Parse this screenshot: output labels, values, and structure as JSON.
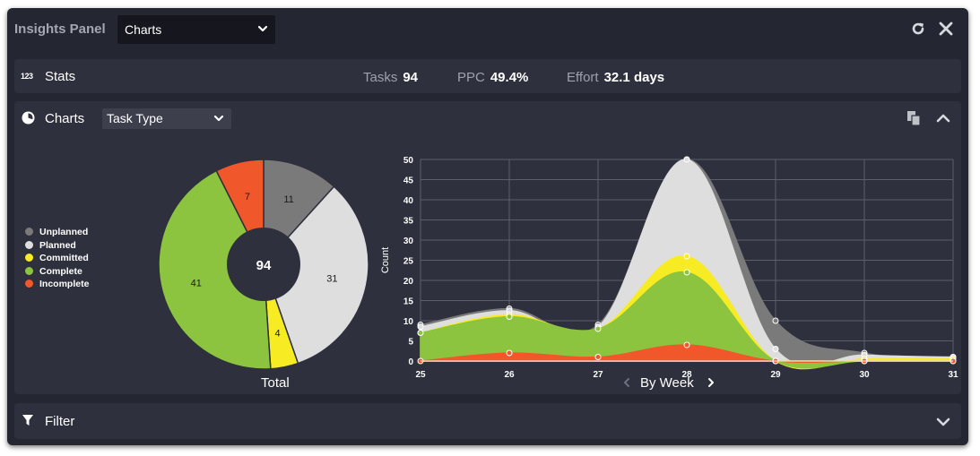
{
  "header": {
    "title": "Insights Panel",
    "view_select": "Charts"
  },
  "stats": {
    "label": "Stats",
    "icon_text": "123",
    "items": [
      {
        "name": "Tasks",
        "value": "94"
      },
      {
        "name": "PPC",
        "value": "49.4%"
      },
      {
        "name": "Effort",
        "value": "32.1 days"
      }
    ]
  },
  "charts_section": {
    "label": "Charts",
    "type_select": "Task Type"
  },
  "filter": {
    "label": "Filter"
  },
  "colors": {
    "unplanned": "#7a7a7a",
    "planned": "#dedede",
    "committed": "#f7ec23",
    "complete": "#8cc43f",
    "incomplete": "#f0572a"
  },
  "legend": [
    "Unplanned",
    "Planned",
    "Committed",
    "Complete",
    "Incomplete"
  ],
  "chart_data": [
    {
      "type": "pie",
      "title": "Total",
      "center_label": "94",
      "slices": [
        {
          "label": "Unplanned",
          "value": 11
        },
        {
          "label": "Planned",
          "value": 31
        },
        {
          "label": "Committed",
          "value": 4
        },
        {
          "label": "Complete",
          "value": 41
        },
        {
          "label": "Incomplete",
          "value": 7
        }
      ]
    },
    {
      "type": "area",
      "xlabel": "By Week",
      "ylabel": "Count",
      "x": [
        25,
        26,
        27,
        28,
        29,
        30,
        31
      ],
      "ylim": [
        0,
        50
      ],
      "yticks": [
        0,
        5,
        10,
        15,
        20,
        25,
        30,
        35,
        40,
        45,
        50
      ],
      "grid": true,
      "series": [
        {
          "name": "Unplanned",
          "values": [
            9,
            13,
            9,
            50,
            10,
            2,
            1
          ]
        },
        {
          "name": "Planned",
          "values": [
            8.5,
            12.5,
            8.5,
            50,
            3,
            1.5,
            1
          ]
        },
        {
          "name": "Committed",
          "values": [
            7,
            11.5,
            8,
            26,
            0,
            0.5,
            0.5
          ]
        },
        {
          "name": "Complete",
          "values": [
            7,
            11,
            8,
            22,
            0,
            0,
            0
          ]
        },
        {
          "name": "Incomplete",
          "values": [
            0,
            2,
            1,
            4,
            0,
            0,
            0
          ]
        }
      ]
    }
  ]
}
